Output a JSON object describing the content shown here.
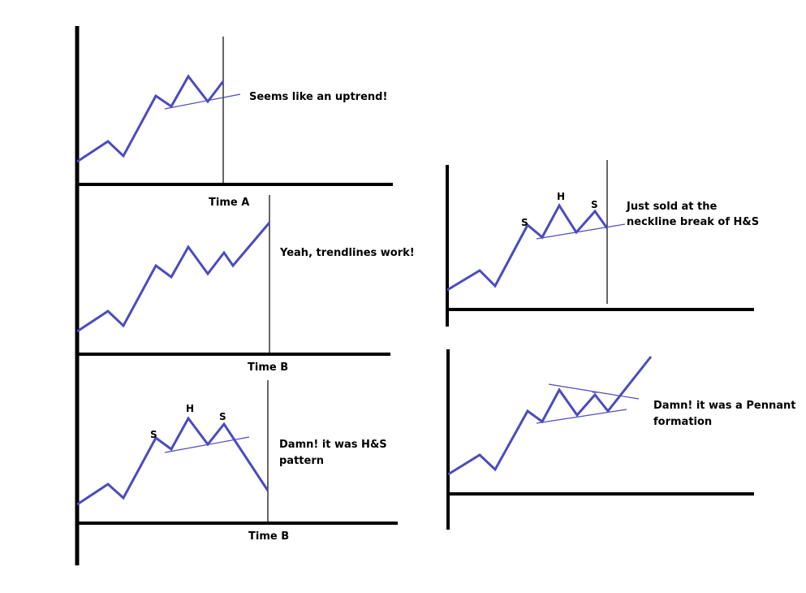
{
  "colors": {
    "axis": "#000000",
    "price": "#4b4bc0",
    "trendline": "#4b4bc0",
    "marker": "#000000"
  },
  "panels": [
    {
      "id": "p1",
      "caption": [
        "Seems like an uptrend!"
      ],
      "time_label": "Time A",
      "pattern_labels": []
    },
    {
      "id": "p2",
      "caption": [
        "Yeah, trendlines work!"
      ],
      "time_label": "Time B",
      "pattern_labels": []
    },
    {
      "id": "p3",
      "caption": [
        "Damn! it was H&S",
        "pattern"
      ],
      "time_label": "Time B",
      "pattern_labels": [
        "S",
        "H",
        "S"
      ]
    },
    {
      "id": "p4",
      "caption": [
        "Just sold at the",
        "neckline break of H&S"
      ],
      "time_label": "",
      "pattern_labels": [
        "S",
        "H",
        "S"
      ]
    },
    {
      "id": "p5",
      "caption": [
        "Damn! it was a Pennant",
        "formation"
      ],
      "time_label": "",
      "pattern_labels": []
    }
  ]
}
